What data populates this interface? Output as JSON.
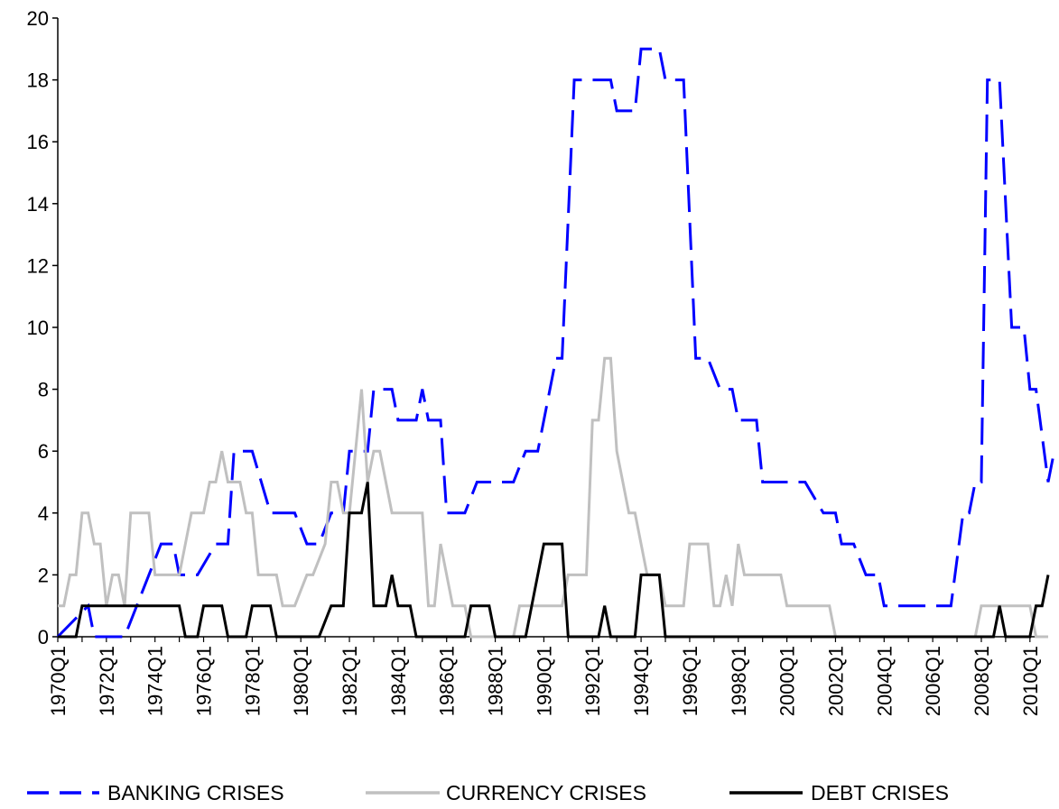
{
  "chart_data": {
    "type": "line",
    "title": "",
    "xlabel": "",
    "ylabel": "",
    "ylim": [
      0,
      20
    ],
    "yticks": [
      0,
      2,
      4,
      6,
      8,
      10,
      12,
      14,
      16,
      18,
      20
    ],
    "grid": false,
    "legend": "bottom",
    "x_tick_labels": [
      "1970Q1",
      "1972Q1",
      "1974Q1",
      "1976Q1",
      "1978Q1",
      "1980Q1",
      "1982Q1",
      "1984Q1",
      "1986Q1",
      "1988Q1",
      "1990Q1",
      "1992Q1",
      "1994Q1",
      "1996Q1",
      "1998Q1",
      "2000Q1",
      "2002Q1",
      "2004Q1",
      "2006Q1",
      "2008Q1",
      "2010Q1"
    ],
    "x_start": "1970Q1",
    "x_end": "2010Q4",
    "series": [
      {
        "name": "BANKING CRISES",
        "color": "#0000ff",
        "dash": "dashed",
        "points": [
          [
            "1970Q1",
            0
          ],
          [
            "1971Q2",
            1
          ],
          [
            "1971Q3",
            0
          ],
          [
            "1972Q4",
            0
          ],
          [
            "1973Q4",
            2
          ],
          [
            "1974Q2",
            3
          ],
          [
            "1974Q4",
            3
          ],
          [
            "1975Q1",
            2
          ],
          [
            "1975Q4",
            2
          ],
          [
            "1976Q3",
            3
          ],
          [
            "1977Q1",
            3
          ],
          [
            "1977Q2",
            6
          ],
          [
            "1978Q1",
            6
          ],
          [
            "1978Q4",
            4
          ],
          [
            "1979Q4",
            4
          ],
          [
            "1980Q2",
            3
          ],
          [
            "1980Q4",
            3
          ],
          [
            "1981Q2",
            4
          ],
          [
            "1981Q4",
            4
          ],
          [
            "1982Q1",
            6
          ],
          [
            "1982Q4",
            6
          ],
          [
            "1983Q1",
            8
          ],
          [
            "1983Q4",
            8
          ],
          [
            "1984Q1",
            7
          ],
          [
            "1984Q4",
            7
          ],
          [
            "1985Q1",
            8
          ],
          [
            "1985Q2",
            7
          ],
          [
            "1985Q4",
            7
          ],
          [
            "1986Q1",
            4
          ],
          [
            "1986Q4",
            4
          ],
          [
            "1987Q2",
            5
          ],
          [
            "1988Q4",
            5
          ],
          [
            "1989Q2",
            6
          ],
          [
            "1989Q4",
            6
          ],
          [
            "1990Q3",
            9
          ],
          [
            "1990Q4",
            9
          ],
          [
            "1991Q2",
            18
          ],
          [
            "1992Q4",
            18
          ],
          [
            "1993Q1",
            17
          ],
          [
            "1993Q4",
            17
          ],
          [
            "1994Q1",
            19
          ],
          [
            "1994Q4",
            19
          ],
          [
            "1995Q1",
            18
          ],
          [
            "1995Q4",
            18
          ],
          [
            "1996Q2",
            9
          ],
          [
            "1996Q4",
            9
          ],
          [
            "1997Q2",
            8
          ],
          [
            "1997Q4",
            8
          ],
          [
            "1998Q1",
            7
          ],
          [
            "1998Q4",
            7
          ],
          [
            "1999Q1",
            5
          ],
          [
            "2000Q4",
            5
          ],
          [
            "2001Q3",
            4
          ],
          [
            "2002Q1",
            4
          ],
          [
            "2002Q2",
            3
          ],
          [
            "2002Q4",
            3
          ],
          [
            "2003Q2",
            2
          ],
          [
            "2003Q4",
            2
          ],
          [
            "2004Q1",
            1
          ],
          [
            "2006Q4",
            1
          ],
          [
            "2007Q2",
            4
          ],
          [
            "2007Q3",
            4
          ],
          [
            "2007Q4",
            5
          ],
          [
            "2008Q1",
            5
          ],
          [
            "2008Q2",
            18
          ],
          [
            "2008Q4",
            18
          ],
          [
            "2009Q2",
            10
          ],
          [
            "2009Q4",
            10
          ],
          [
            "2010Q1",
            8
          ],
          [
            "2010Q2",
            8
          ],
          [
            "2010Q4",
            5
          ],
          [
            "2011Q1",
            6
          ]
        ]
      },
      {
        "name": "CURRENCY CRISES",
        "color": "#c0c0c0",
        "dash": "solid",
        "points": [
          [
            "1970Q1",
            1
          ],
          [
            "1970Q2",
            1
          ],
          [
            "1970Q3",
            2
          ],
          [
            "1970Q4",
            2
          ],
          [
            "1971Q1",
            4
          ],
          [
            "1971Q2",
            4
          ],
          [
            "1971Q3",
            3
          ],
          [
            "1971Q4",
            3
          ],
          [
            "1972Q1",
            1
          ],
          [
            "1972Q2",
            2
          ],
          [
            "1972Q3",
            2
          ],
          [
            "1972Q4",
            1
          ],
          [
            "1973Q1",
            4
          ],
          [
            "1973Q4",
            4
          ],
          [
            "1974Q1",
            2
          ],
          [
            "1975Q1",
            2
          ],
          [
            "1975Q3",
            4
          ],
          [
            "1976Q1",
            4
          ],
          [
            "1976Q2",
            5
          ],
          [
            "1976Q3",
            5
          ],
          [
            "1976Q4",
            6
          ],
          [
            "1977Q1",
            5
          ],
          [
            "1977Q3",
            5
          ],
          [
            "1977Q4",
            4
          ],
          [
            "1978Q1",
            4
          ],
          [
            "1978Q2",
            2
          ],
          [
            "1979Q1",
            2
          ],
          [
            "1979Q2",
            1
          ],
          [
            "1979Q4",
            1
          ],
          [
            "1980Q2",
            2
          ],
          [
            "1980Q3",
            2
          ],
          [
            "1981Q1",
            3
          ],
          [
            "1981Q2",
            5
          ],
          [
            "1981Q3",
            5
          ],
          [
            "1981Q4",
            4
          ],
          [
            "1982Q1",
            4
          ],
          [
            "1982Q3",
            8
          ],
          [
            "1982Q4",
            5
          ],
          [
            "1983Q1",
            6
          ],
          [
            "1983Q2",
            6
          ],
          [
            "1983Q4",
            4
          ],
          [
            "1985Q1",
            4
          ],
          [
            "1985Q2",
            1
          ],
          [
            "1985Q3",
            1
          ],
          [
            "1985Q4",
            3
          ],
          [
            "1986Q2",
            1
          ],
          [
            "1986Q4",
            1
          ],
          [
            "1987Q1",
            0
          ],
          [
            "1988Q4",
            0
          ],
          [
            "1989Q1",
            1
          ],
          [
            "1990Q4",
            1
          ],
          [
            "1991Q1",
            2
          ],
          [
            "1991Q4",
            2
          ],
          [
            "1992Q1",
            7
          ],
          [
            "1992Q2",
            7
          ],
          [
            "1992Q3",
            9
          ],
          [
            "1992Q4",
            9
          ],
          [
            "1993Q1",
            6
          ],
          [
            "1993Q3",
            4
          ],
          [
            "1993Q4",
            4
          ],
          [
            "1994Q2",
            2
          ],
          [
            "1994Q4",
            2
          ],
          [
            "1995Q1",
            1
          ],
          [
            "1995Q4",
            1
          ],
          [
            "1996Q1",
            3
          ],
          [
            "1996Q4",
            3
          ],
          [
            "1997Q1",
            1
          ],
          [
            "1997Q2",
            1
          ],
          [
            "1997Q3",
            2
          ],
          [
            "1997Q4",
            1
          ],
          [
            "1998Q1",
            3
          ],
          [
            "1998Q2",
            2
          ],
          [
            "1999Q4",
            2
          ],
          [
            "2000Q1",
            1
          ],
          [
            "2001Q4",
            1
          ],
          [
            "2002Q1",
            0
          ],
          [
            "2007Q4",
            0
          ],
          [
            "2008Q1",
            1
          ],
          [
            "2010Q1",
            1
          ],
          [
            "2010Q2",
            0
          ],
          [
            "2010Q4",
            0
          ]
        ]
      },
      {
        "name": "DEBT CRISES",
        "color": "#000000",
        "dash": "solid",
        "points": [
          [
            "1970Q1",
            0
          ],
          [
            "1970Q4",
            0
          ],
          [
            "1971Q1",
            1
          ],
          [
            "1975Q1",
            1
          ],
          [
            "1975Q2",
            0
          ],
          [
            "1975Q4",
            0
          ],
          [
            "1976Q1",
            1
          ],
          [
            "1976Q4",
            1
          ],
          [
            "1977Q1",
            0
          ],
          [
            "1977Q4",
            0
          ],
          [
            "1978Q1",
            1
          ],
          [
            "1978Q4",
            1
          ],
          [
            "1979Q1",
            0
          ],
          [
            "1980Q4",
            0
          ],
          [
            "1981Q2",
            1
          ],
          [
            "1981Q4",
            1
          ],
          [
            "1982Q1",
            4
          ],
          [
            "1982Q3",
            4
          ],
          [
            "1982Q4",
            5
          ],
          [
            "1983Q1",
            1
          ],
          [
            "1983Q3",
            1
          ],
          [
            "1983Q4",
            2
          ],
          [
            "1984Q1",
            1
          ],
          [
            "1984Q3",
            1
          ],
          [
            "1984Q4",
            0
          ],
          [
            "1986Q4",
            0
          ],
          [
            "1987Q1",
            1
          ],
          [
            "1987Q4",
            1
          ],
          [
            "1988Q1",
            0
          ],
          [
            "1989Q2",
            0
          ],
          [
            "1990Q1",
            3
          ],
          [
            "1990Q4",
            3
          ],
          [
            "1991Q1",
            0
          ],
          [
            "1992Q2",
            0
          ],
          [
            "1992Q3",
            1
          ],
          [
            "1992Q4",
            0
          ],
          [
            "1993Q4",
            0
          ],
          [
            "1994Q1",
            2
          ],
          [
            "1994Q4",
            2
          ],
          [
            "1995Q1",
            0
          ],
          [
            "2008Q3",
            0
          ],
          [
            "2008Q4",
            1
          ],
          [
            "2009Q1",
            0
          ],
          [
            "2010Q1",
            0
          ],
          [
            "2010Q2",
            1
          ],
          [
            "2010Q3",
            1
          ],
          [
            "2010Q4",
            2
          ]
        ]
      }
    ]
  }
}
